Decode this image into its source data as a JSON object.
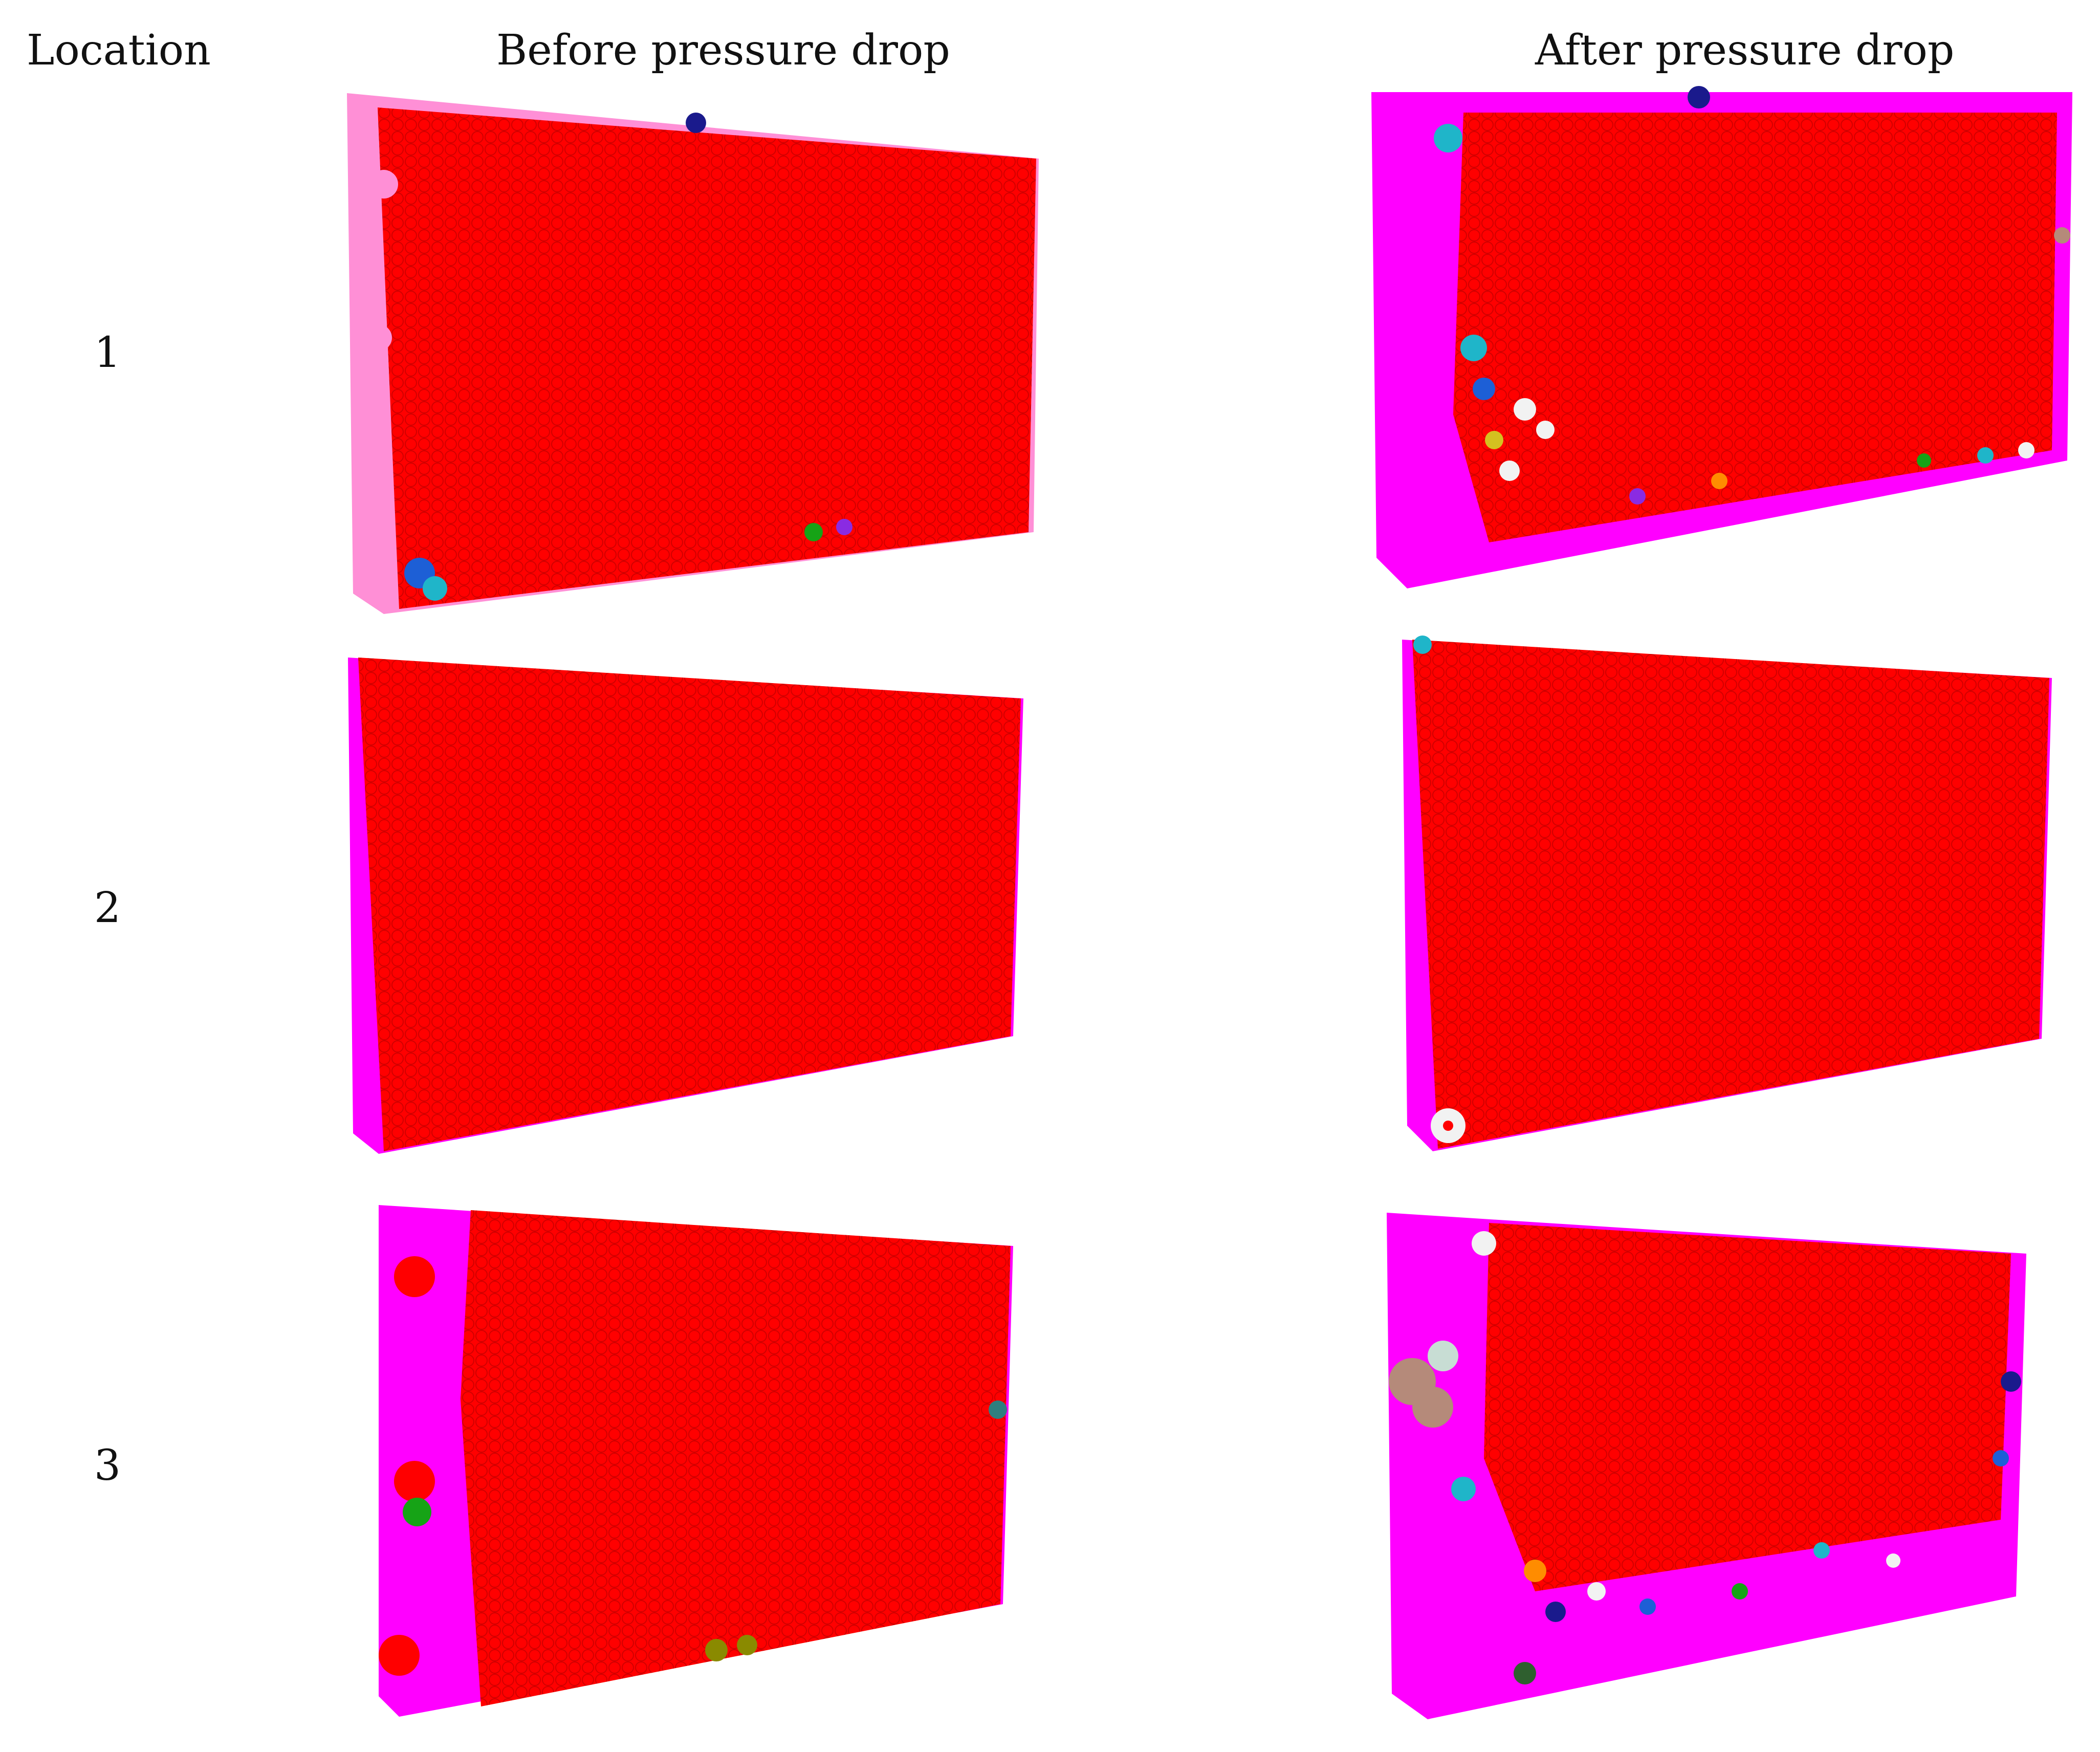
{
  "headers": {
    "location": "Location",
    "before": "Before pressure drop",
    "after": "After pressure drop"
  },
  "rows": [
    {
      "label": "1",
      "before": {
        "state": "mostly-red-slab-with-pink-rim"
      },
      "after": {
        "state": "red-core-with-magenta-border-and-mixed-clusters"
      }
    },
    {
      "label": "2",
      "before": {
        "state": "uniform-red-slab"
      },
      "after": {
        "state": "uniform-red-slab-with-few-white-spheres"
      }
    },
    {
      "label": "3",
      "before": {
        "state": "red-slab-with-magenta-left-band"
      },
      "after": {
        "state": "red-core-with-wide-magenta-border-and-many-clusters"
      }
    }
  ],
  "colors": {
    "main": "#ff0000",
    "main_dark": "#8b0000",
    "magenta": "#ff00ff",
    "pink": "#ff8fd6",
    "green": "#16a316",
    "blue": "#1d5fd6",
    "cyan": "#1fb5c9",
    "olive": "#8a8a00",
    "white": "#f2f2f2",
    "tan": "#b58a7a",
    "navy": "#1a1a8c",
    "purple": "#8a2be2"
  }
}
